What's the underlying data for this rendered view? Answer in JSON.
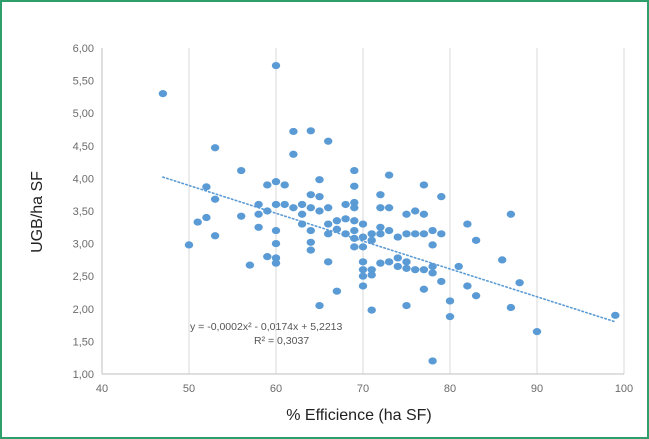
{
  "chart_data": {
    "type": "scatter",
    "xlabel": "% Efficience (ha SF)",
    "ylabel": "UGB/ha SF",
    "xlim": [
      40,
      100
    ],
    "ylim": [
      1.0,
      6.0
    ],
    "x_ticks": [
      "40",
      "50",
      "60",
      "70",
      "80",
      "90",
      "100"
    ],
    "y_ticks": [
      "1,00",
      "1,50",
      "2,00",
      "2,50",
      "3,00",
      "3,50",
      "4,00",
      "4,50",
      "5,00",
      "5,50",
      "6,00"
    ],
    "grid": "vertical",
    "point_color": "#5b9bd5",
    "trendline": {
      "style": "dotted",
      "color": "#5b9bd5",
      "x_range": [
        47,
        99
      ],
      "y_range": [
        4.02,
        1.8
      ],
      "equation": "y = -0,0002x² - 0,0174x + 5,2213",
      "r_squared": "R² = 0,3037"
    },
    "points": [
      [
        47,
        5.3
      ],
      [
        50,
        2.98
      ],
      [
        51,
        3.33
      ],
      [
        52,
        3.87
      ],
      [
        52,
        3.4
      ],
      [
        53,
        4.47
      ],
      [
        53,
        3.12
      ],
      [
        53,
        3.68
      ],
      [
        56,
        4.12
      ],
      [
        56,
        3.42
      ],
      [
        57,
        2.67
      ],
      [
        58,
        3.6
      ],
      [
        58,
        3.45
      ],
      [
        58,
        3.25
      ],
      [
        59,
        3.9
      ],
      [
        59,
        3.5
      ],
      [
        59,
        2.8
      ],
      [
        60,
        5.73
      ],
      [
        60,
        3.95
      ],
      [
        60,
        3.6
      ],
      [
        60,
        3.2
      ],
      [
        60,
        3.0
      ],
      [
        60,
        2.78
      ],
      [
        60,
        2.7
      ],
      [
        61,
        3.9
      ],
      [
        61,
        3.6
      ],
      [
        62,
        4.72
      ],
      [
        62,
        4.37
      ],
      [
        62,
        3.55
      ],
      [
        63,
        3.6
      ],
      [
        63,
        3.45
      ],
      [
        63,
        3.3
      ],
      [
        64,
        4.73
      ],
      [
        64,
        3.75
      ],
      [
        64,
        3.55
      ],
      [
        64,
        3.2
      ],
      [
        64,
        3.02
      ],
      [
        64,
        2.9
      ],
      [
        65,
        3.98
      ],
      [
        65,
        3.72
      ],
      [
        65,
        3.5
      ],
      [
        65,
        2.05
      ],
      [
        66,
        4.57
      ],
      [
        66,
        3.55
      ],
      [
        66,
        3.3
      ],
      [
        66,
        3.15
      ],
      [
        66,
        2.72
      ],
      [
        67,
        3.35
      ],
      [
        67,
        3.22
      ],
      [
        67,
        2.27
      ],
      [
        68,
        3.6
      ],
      [
        68,
        3.38
      ],
      [
        68,
        3.15
      ],
      [
        69,
        4.12
      ],
      [
        69,
        3.88
      ],
      [
        69,
        3.63
      ],
      [
        69,
        3.55
      ],
      [
        69,
        3.35
      ],
      [
        69,
        3.2
      ],
      [
        69,
        3.08
      ],
      [
        69,
        2.95
      ],
      [
        70,
        3.3
      ],
      [
        70,
        3.1
      ],
      [
        70,
        2.95
      ],
      [
        70,
        2.72
      ],
      [
        70,
        2.6
      ],
      [
        70,
        2.5
      ],
      [
        70,
        2.35
      ],
      [
        71,
        3.15
      ],
      [
        71,
        3.05
      ],
      [
        71,
        2.6
      ],
      [
        71,
        2.52
      ],
      [
        71,
        1.98
      ],
      [
        72,
        3.75
      ],
      [
        72,
        3.55
      ],
      [
        72,
        3.25
      ],
      [
        72,
        3.15
      ],
      [
        72,
        2.7
      ],
      [
        73,
        4.05
      ],
      [
        73,
        3.55
      ],
      [
        73,
        3.2
      ],
      [
        73,
        2.72
      ],
      [
        74,
        3.1
      ],
      [
        74,
        2.78
      ],
      [
        74,
        2.65
      ],
      [
        75,
        3.45
      ],
      [
        75,
        3.15
      ],
      [
        75,
        2.72
      ],
      [
        75,
        2.62
      ],
      [
        75,
        2.05
      ],
      [
        76,
        3.5
      ],
      [
        76,
        3.15
      ],
      [
        76,
        2.6
      ],
      [
        77,
        3.9
      ],
      [
        77,
        3.45
      ],
      [
        77,
        3.15
      ],
      [
        77,
        2.6
      ],
      [
        77,
        2.3
      ],
      [
        78,
        3.2
      ],
      [
        78,
        2.98
      ],
      [
        78,
        2.65
      ],
      [
        78,
        2.55
      ],
      [
        78,
        1.2
      ],
      [
        79,
        3.72
      ],
      [
        79,
        3.15
      ],
      [
        79,
        2.42
      ],
      [
        80,
        2.12
      ],
      [
        80,
        1.88
      ],
      [
        81,
        2.65
      ],
      [
        82,
        3.3
      ],
      [
        82,
        2.35
      ],
      [
        83,
        3.05
      ],
      [
        83,
        2.2
      ],
      [
        86,
        2.75
      ],
      [
        87,
        3.45
      ],
      [
        87,
        2.02
      ],
      [
        88,
        2.4
      ],
      [
        90,
        1.65
      ],
      [
        99,
        1.9
      ]
    ]
  }
}
